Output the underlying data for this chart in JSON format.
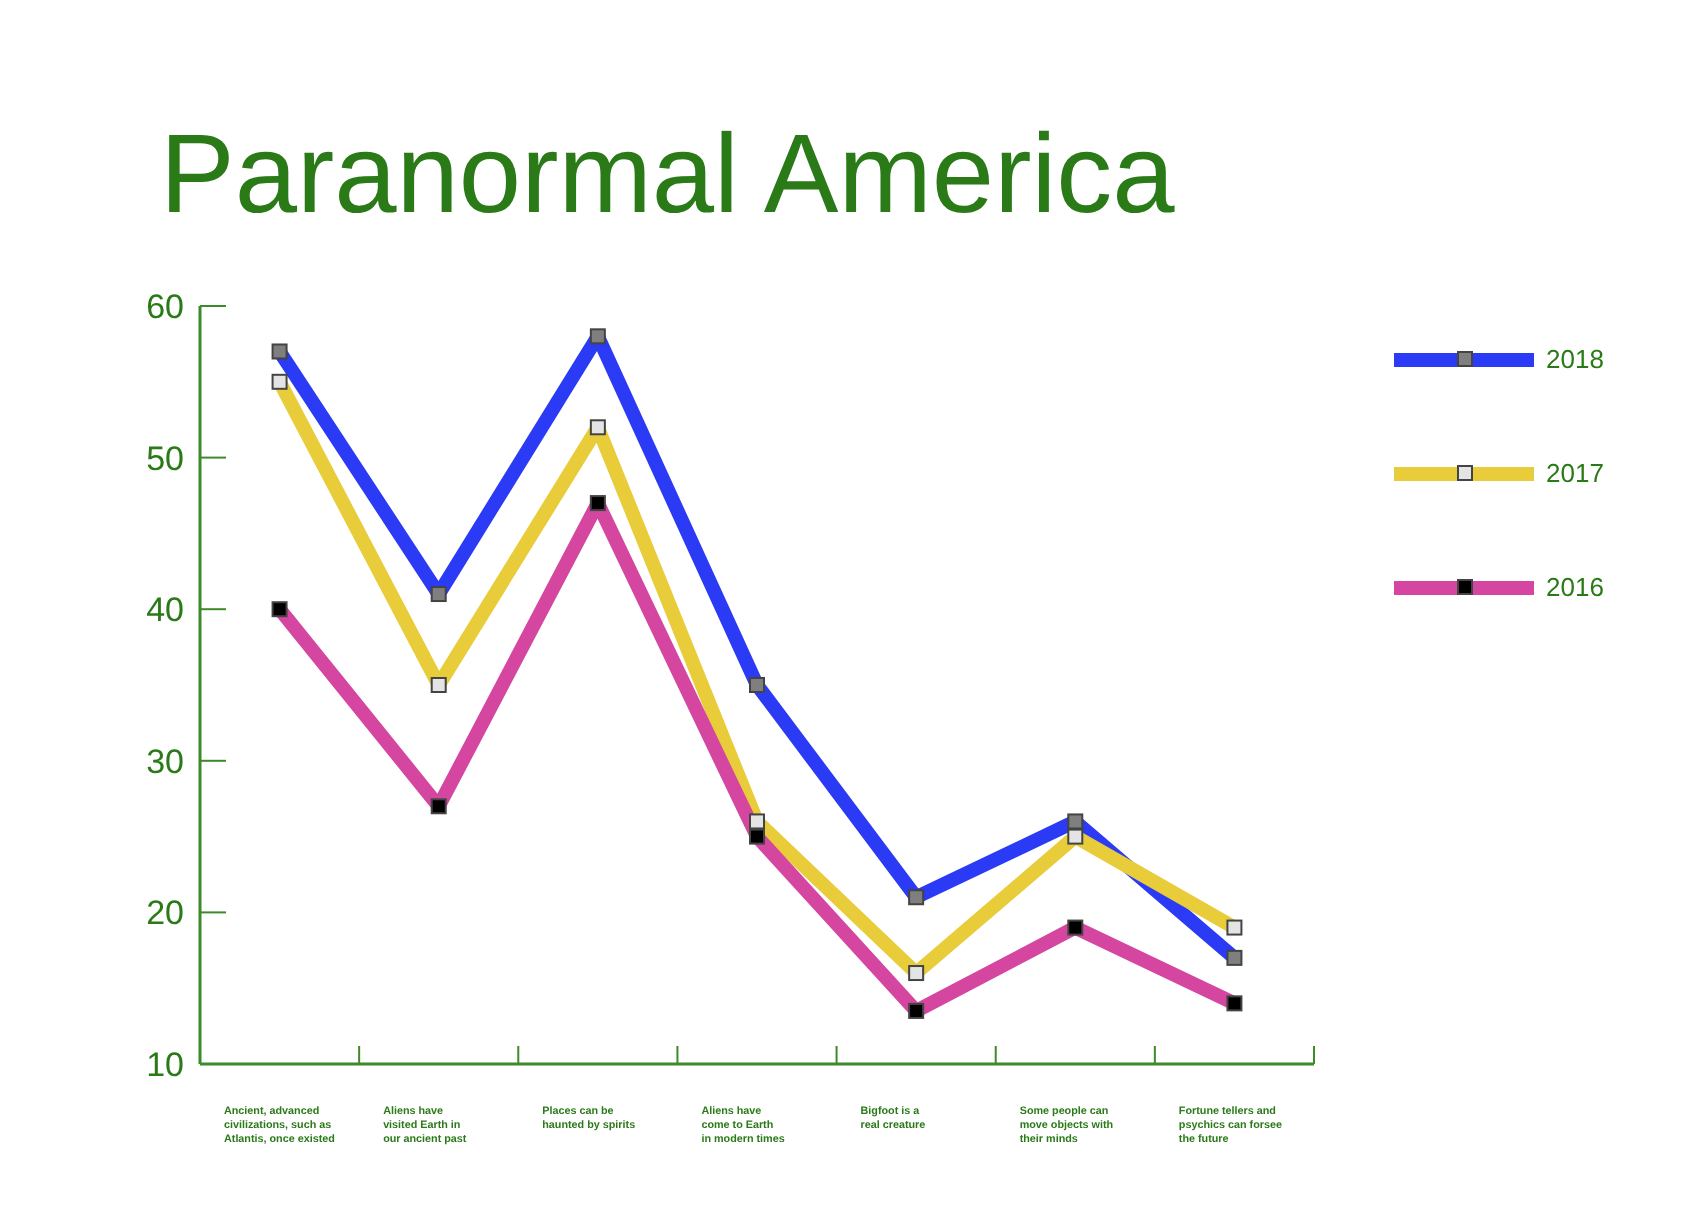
{
  "chart_data": {
    "type": "line",
    "title": "Paranormal America",
    "categories": [
      "Ancient, advanced\ncivilizations, such as\nAtlantis, once existed",
      "Aliens have\nvisited Earth in\nour ancient past",
      "Places can be\nhaunted by spirits",
      "Aliens have\ncome to Earth\nin modern times",
      "Bigfoot is a\nreal creature",
      "Some people can\nmove objects with\ntheir minds",
      "Fortune tellers and\npsychics can forsee\nthe future"
    ],
    "series": [
      {
        "name": "2018",
        "color": "#2b3af5",
        "values": [
          57,
          41,
          58,
          35,
          21,
          26,
          17
        ]
      },
      {
        "name": "2017",
        "color": "#e8cc3a",
        "values": [
          55,
          35,
          52,
          26,
          16,
          25,
          19
        ]
      },
      {
        "name": "2016",
        "color": "#d446a0",
        "values": [
          40,
          27,
          47,
          25,
          13.5,
          19,
          14
        ]
      }
    ],
    "ylim": [
      10,
      60
    ],
    "yticks": [
      10,
      20,
      30,
      40,
      50,
      60
    ],
    "legend": "right",
    "marker": "square",
    "line_style": "solid"
  }
}
